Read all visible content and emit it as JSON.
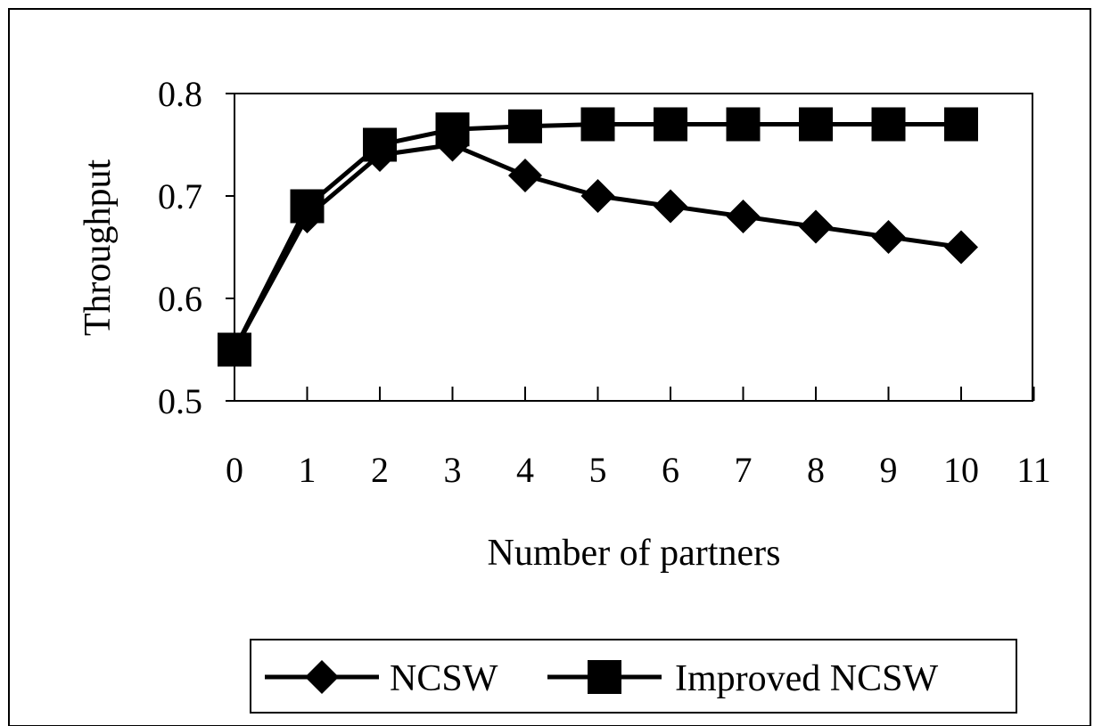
{
  "chart_data": {
    "type": "line",
    "title": "",
    "xlabel": "Number of partners",
    "ylabel": "Throughput",
    "xlim": [
      0,
      11
    ],
    "ylim": [
      0.5,
      0.8
    ],
    "x_ticks": [
      "0",
      "1",
      "2",
      "3",
      "4",
      "5",
      "6",
      "7",
      "8",
      "9",
      "10",
      "11"
    ],
    "y_ticks": [
      "0.5",
      "0.6",
      "0.7",
      "0.8"
    ],
    "grid": false,
    "legend_position": "bottom",
    "x": [
      0,
      1,
      2,
      3,
      4,
      5,
      6,
      7,
      8,
      9,
      10
    ],
    "series": [
      {
        "name": "NCSW",
        "marker": "diamond",
        "color": "#000000",
        "values": [
          0.55,
          0.68,
          0.74,
          0.75,
          0.72,
          0.7,
          0.69,
          0.68,
          0.67,
          0.66,
          0.65
        ]
      },
      {
        "name": "Improved NCSW",
        "marker": "square",
        "color": "#000000",
        "values": [
          0.55,
          0.69,
          0.75,
          0.765,
          0.768,
          0.77,
          0.77,
          0.77,
          0.77,
          0.77,
          0.77
        ]
      }
    ]
  }
}
